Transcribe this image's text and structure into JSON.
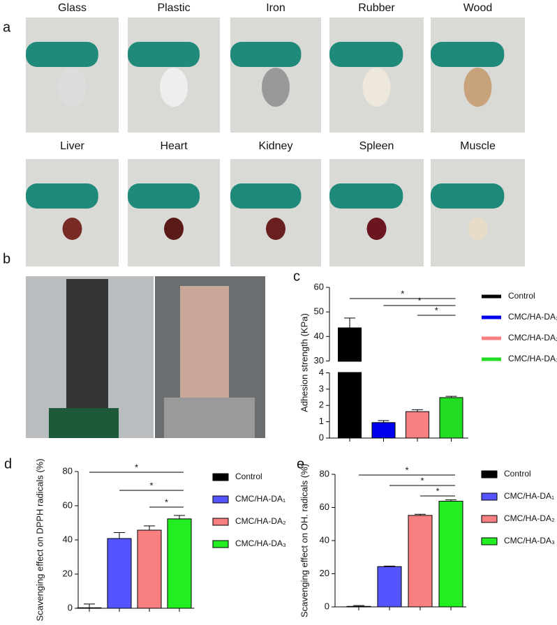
{
  "panel_labels": [
    "a",
    "b"
  ],
  "photo_labels": [
    "Glass",
    "Plastic",
    "Iron",
    "Rubber",
    "Wood",
    "Liver",
    "Heart",
    "Kidney",
    "Spleen",
    "Muscle"
  ],
  "chart_data": [
    {
      "type": "bar",
      "label": "c",
      "y_label": "Adhesion strength (KPa)",
      "ylim": [
        0,
        60
      ],
      "ybreak": [
        4,
        30
      ],
      "yticks": [
        0,
        1,
        2,
        3,
        4,
        30,
        40,
        50,
        60
      ],
      "series": [
        {
          "name": "Control",
          "color": "#000000",
          "values": [
            43.5
          ],
          "errors": [
            4
          ]
        },
        {
          "name": "CMC/HA-DA₁",
          "color": "#0000ee",
          "values": [
            0.95
          ],
          "errors": [
            0.12
          ]
        },
        {
          "name": "CMC/HA-DA₂",
          "color": "#f88080",
          "values": [
            1.62
          ],
          "errors": [
            0.12
          ]
        },
        {
          "name": "CMC/HA-DA₃",
          "color": "#22dd22",
          "values": [
            2.48
          ],
          "errors": [
            0.08
          ]
        }
      ],
      "significance": [
        {
          "from": 0,
          "to": 3,
          "label": "*"
        },
        {
          "from": 1,
          "to": 3,
          "label": "*"
        },
        {
          "from": 2,
          "to": 3,
          "label": "*"
        }
      ]
    },
    {
      "type": "bar",
      "label": "d",
      "y_label": "Scavenging effect on DPPH radicals (%)",
      "ylim": [
        0,
        80
      ],
      "yticks": [
        0,
        20,
        40,
        60,
        80
      ],
      "series": [
        {
          "name": "Control",
          "color": "#000000",
          "values": [
            0.3
          ],
          "errors": [
            2.2
          ]
        },
        {
          "name": "CMC/HA-DA₁",
          "color": "#5555ff",
          "values": [
            40.8
          ],
          "errors": [
            3.5
          ]
        },
        {
          "name": "CMC/HA-DA₂",
          "color": "#f88080",
          "values": [
            45.7
          ],
          "errors": [
            2.5
          ]
        },
        {
          "name": "CMC/HA-DA₃",
          "color": "#22ee22",
          "values": [
            52.3
          ],
          "errors": [
            2
          ]
        }
      ],
      "significance": [
        {
          "from": 0,
          "to": 3,
          "label": "*"
        },
        {
          "from": 1,
          "to": 3,
          "label": "*"
        },
        {
          "from": 2,
          "to": 3,
          "label": "*"
        }
      ]
    },
    {
      "type": "bar",
      "label": "e",
      "y_label": "Scavenging effect on OH. radicals (%)",
      "ylim": [
        0,
        80
      ],
      "yticks": [
        0,
        20,
        40,
        60,
        80
      ],
      "series": [
        {
          "name": "Control",
          "color": "#000000",
          "values": [
            0.3
          ],
          "errors": [
            0.5
          ]
        },
        {
          "name": "CMC/HA-DA₁",
          "color": "#5555ff",
          "values": [
            24.3
          ],
          "errors": [
            0.3
          ]
        },
        {
          "name": "CMC/HA-DA₂",
          "color": "#f88080",
          "values": [
            55.2
          ],
          "errors": [
            0.7
          ]
        },
        {
          "name": "CMC/HA-DA₃",
          "color": "#22ee22",
          "values": [
            63.8
          ],
          "errors": [
            0.8
          ]
        }
      ],
      "significance": [
        {
          "from": 0,
          "to": 3,
          "label": "*"
        },
        {
          "from": 1,
          "to": 3,
          "label": "*"
        },
        {
          "from": 2,
          "to": 3,
          "label": "*"
        }
      ]
    }
  ]
}
